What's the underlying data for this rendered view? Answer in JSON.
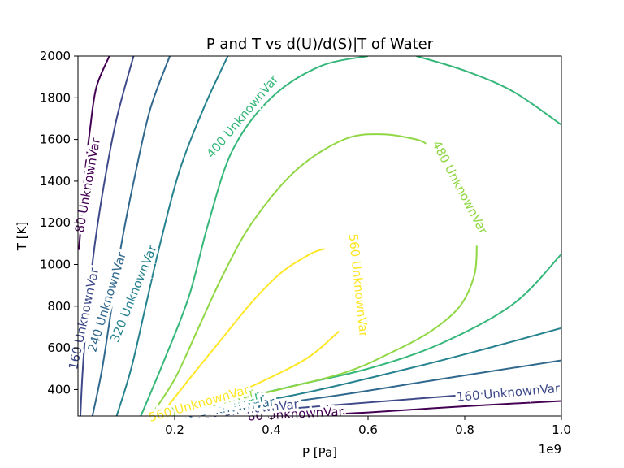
{
  "chart_data": {
    "type": "contour",
    "title": "P and T vs d(U)/d(S)|T of Water",
    "xlabel": "P [Pa]",
    "ylabel": "T [K]",
    "x_offset_label": "1e9",
    "xlim": [
      0.0,
      1.0
    ],
    "ylim": [
      273,
      2000
    ],
    "x_scale_factor": 1000000000,
    "xticks": [
      0.2,
      0.4,
      0.6,
      0.8,
      1.0
    ],
    "xtick_labels": [
      "0.2",
      "0.4",
      "0.6",
      "0.8",
      "1.0"
    ],
    "yticks": [
      400,
      600,
      800,
      1000,
      1200,
      1400,
      1600,
      1800,
      2000
    ],
    "ytick_labels": [
      "400",
      "600",
      "800",
      "1000",
      "1200",
      "1400",
      "1600",
      "1800",
      "2000"
    ],
    "grid": false,
    "colormap": "viridis",
    "levels": [
      {
        "value": 80,
        "label": "80 UnknownVar",
        "color": "#440154",
        "paths": [
          [
            [
              0.002,
              1070
            ],
            [
              0.008,
              1250
            ],
            [
              0.015,
              1450
            ],
            [
              0.025,
              1650
            ],
            [
              0.038,
              1850
            ],
            [
              0.065,
              2000
            ]
          ],
          [
            [
              0.43,
              273
            ],
            [
              0.6,
              290
            ],
            [
              0.8,
              320
            ],
            [
              1.0,
              345
            ]
          ]
        ],
        "labels": [
          {
            "text": "80 UnknownVar",
            "x": 0.02,
            "y": 1380,
            "angle": -80
          },
          {
            "text": "80 UnknownVar",
            "x": 0.45,
            "y": 283,
            "angle": -3
          }
        ]
      },
      {
        "value": 160,
        "label": "160 UnknownVar",
        "color": "#3e4989",
        "paths": [
          [
            [
              0.005,
              273
            ],
            [
              0.01,
              500
            ],
            [
              0.02,
              800
            ],
            [
              0.035,
              1100
            ],
            [
              0.055,
              1400
            ],
            [
              0.08,
              1700
            ],
            [
              0.115,
              2000
            ]
          ],
          [
            [
              0.25,
              273
            ],
            [
              0.5,
              320
            ],
            [
              0.75,
              365
            ],
            [
              1.0,
              410
            ]
          ]
        ],
        "labels": [
          {
            "text": "160 UnknownVar",
            "x": 0.012,
            "y": 740,
            "angle": -78
          },
          {
            "text": "160 UnknownVar",
            "x": 0.89,
            "y": 385,
            "angle": -5
          },
          {
            "text": "160 UnknownVar",
            "x": 0.35,
            "y": 305,
            "angle": -6
          }
        ]
      },
      {
        "value": 240,
        "label": "240 UnknownVar",
        "color": "#31688e",
        "paths": [
          [
            [
              0.03,
              273
            ],
            [
              0.05,
              500
            ],
            [
              0.07,
              800
            ],
            [
              0.09,
              1100
            ],
            [
              0.12,
              1450
            ],
            [
              0.15,
              1750
            ],
            [
              0.19,
              2000
            ]
          ],
          [
            [
              0.2,
              273
            ],
            [
              0.5,
              360
            ],
            [
              0.75,
              450
            ],
            [
              1.0,
              540
            ]
          ]
        ],
        "labels": [
          {
            "text": "240 UnknownVar",
            "x": 0.06,
            "y": 820,
            "angle": -73
          },
          {
            "text": "240 UnknownVar",
            "x": 0.3,
            "y": 308,
            "angle": -8
          }
        ]
      },
      {
        "value": 320,
        "label": "320 UnknownVar",
        "color": "#26828e",
        "paths": [
          [
            [
              0.08,
              273
            ],
            [
              0.11,
              500
            ],
            [
              0.14,
              800
            ],
            [
              0.17,
              1100
            ],
            [
              0.21,
              1450
            ],
            [
              0.26,
              1750
            ],
            [
              0.31,
              2000
            ]
          ],
          [
            [
              0.19,
              273
            ],
            [
              0.45,
              375
            ],
            [
              0.7,
              510
            ],
            [
              0.85,
              600
            ],
            [
              1.0,
              695
            ]
          ]
        ],
        "labels": [
          {
            "text": "320 UnknownVar",
            "x": 0.115,
            "y": 860,
            "angle": -68
          },
          {
            "text": "320 UnknownVar",
            "x": 0.28,
            "y": 318,
            "angle": -10
          }
        ]
      },
      {
        "value": 400,
        "label": "400 UnknownVar",
        "color": "#35b779",
        "paths": [
          [
            [
              0.13,
              273
            ],
            [
              0.18,
              550
            ],
            [
              0.23,
              850
            ],
            [
              0.27,
              1200
            ],
            [
              0.32,
              1550
            ],
            [
              0.4,
              1800
            ],
            [
              0.5,
              1950
            ],
            [
              0.6,
              2000
            ]
          ],
          [
            [
              0.7,
              2000
            ],
            [
              0.8,
              1930
            ],
            [
              0.9,
              1830
            ],
            [
              1.0,
              1670
            ]
          ],
          [
            [
              0.18,
              273
            ],
            [
              0.45,
              420
            ],
            [
              0.6,
              500
            ],
            [
              0.75,
              620
            ],
            [
              0.9,
              810
            ],
            [
              1.0,
              1050
            ]
          ]
        ],
        "labels": [
          {
            "text": "400 UnknownVar",
            "x": 0.34,
            "y": 1710,
            "angle": -50
          },
          {
            "text": "400 UnknownVar",
            "x": 0.27,
            "y": 323,
            "angle": -12
          }
        ]
      },
      {
        "value": 480,
        "label": "480 UnknownVar",
        "color": "#90d743",
        "paths": [
          [
            [
              0.15,
              273
            ],
            [
              0.2,
              450
            ],
            [
              0.25,
              700
            ],
            [
              0.3,
              950
            ],
            [
              0.36,
              1200
            ],
            [
              0.45,
              1450
            ],
            [
              0.55,
              1600
            ],
            [
              0.63,
              1625
            ],
            [
              0.7,
              1600
            ],
            [
              0.72,
              1580
            ]
          ],
          [
            [
              0.18,
              273
            ],
            [
              0.38,
              380
            ],
            [
              0.55,
              480
            ],
            [
              0.65,
              580
            ],
            [
              0.73,
              680
            ],
            [
              0.79,
              800
            ],
            [
              0.82,
              950
            ],
            [
              0.825,
              1090
            ]
          ]
        ],
        "labels": [
          {
            "text": "480 UnknownVar",
            "x": 0.79,
            "y": 1370,
            "angle": 62
          },
          {
            "text": "480 UnknownVar",
            "x": 0.26,
            "y": 328,
            "angle": -14
          }
        ]
      },
      {
        "value": 560,
        "label": "560 UnknownVar",
        "color": "#fde725",
        "paths": [
          [
            [
              0.17,
              273
            ],
            [
              0.23,
              450
            ],
            [
              0.3,
              650
            ],
            [
              0.36,
              820
            ],
            [
              0.42,
              960
            ],
            [
              0.48,
              1050
            ],
            [
              0.51,
              1075
            ]
          ],
          [
            [
              0.17,
              273
            ],
            [
              0.3,
              360
            ],
            [
              0.4,
              460
            ],
            [
              0.48,
              560
            ],
            [
              0.54,
              680
            ]
          ]
        ],
        "labels": [
          {
            "text": "560 UnknownVar",
            "x": 0.58,
            "y": 900,
            "angle": 84
          },
          {
            "text": "560 UnknownVar",
            "x": 0.25,
            "y": 333,
            "angle": -16
          }
        ]
      }
    ]
  }
}
